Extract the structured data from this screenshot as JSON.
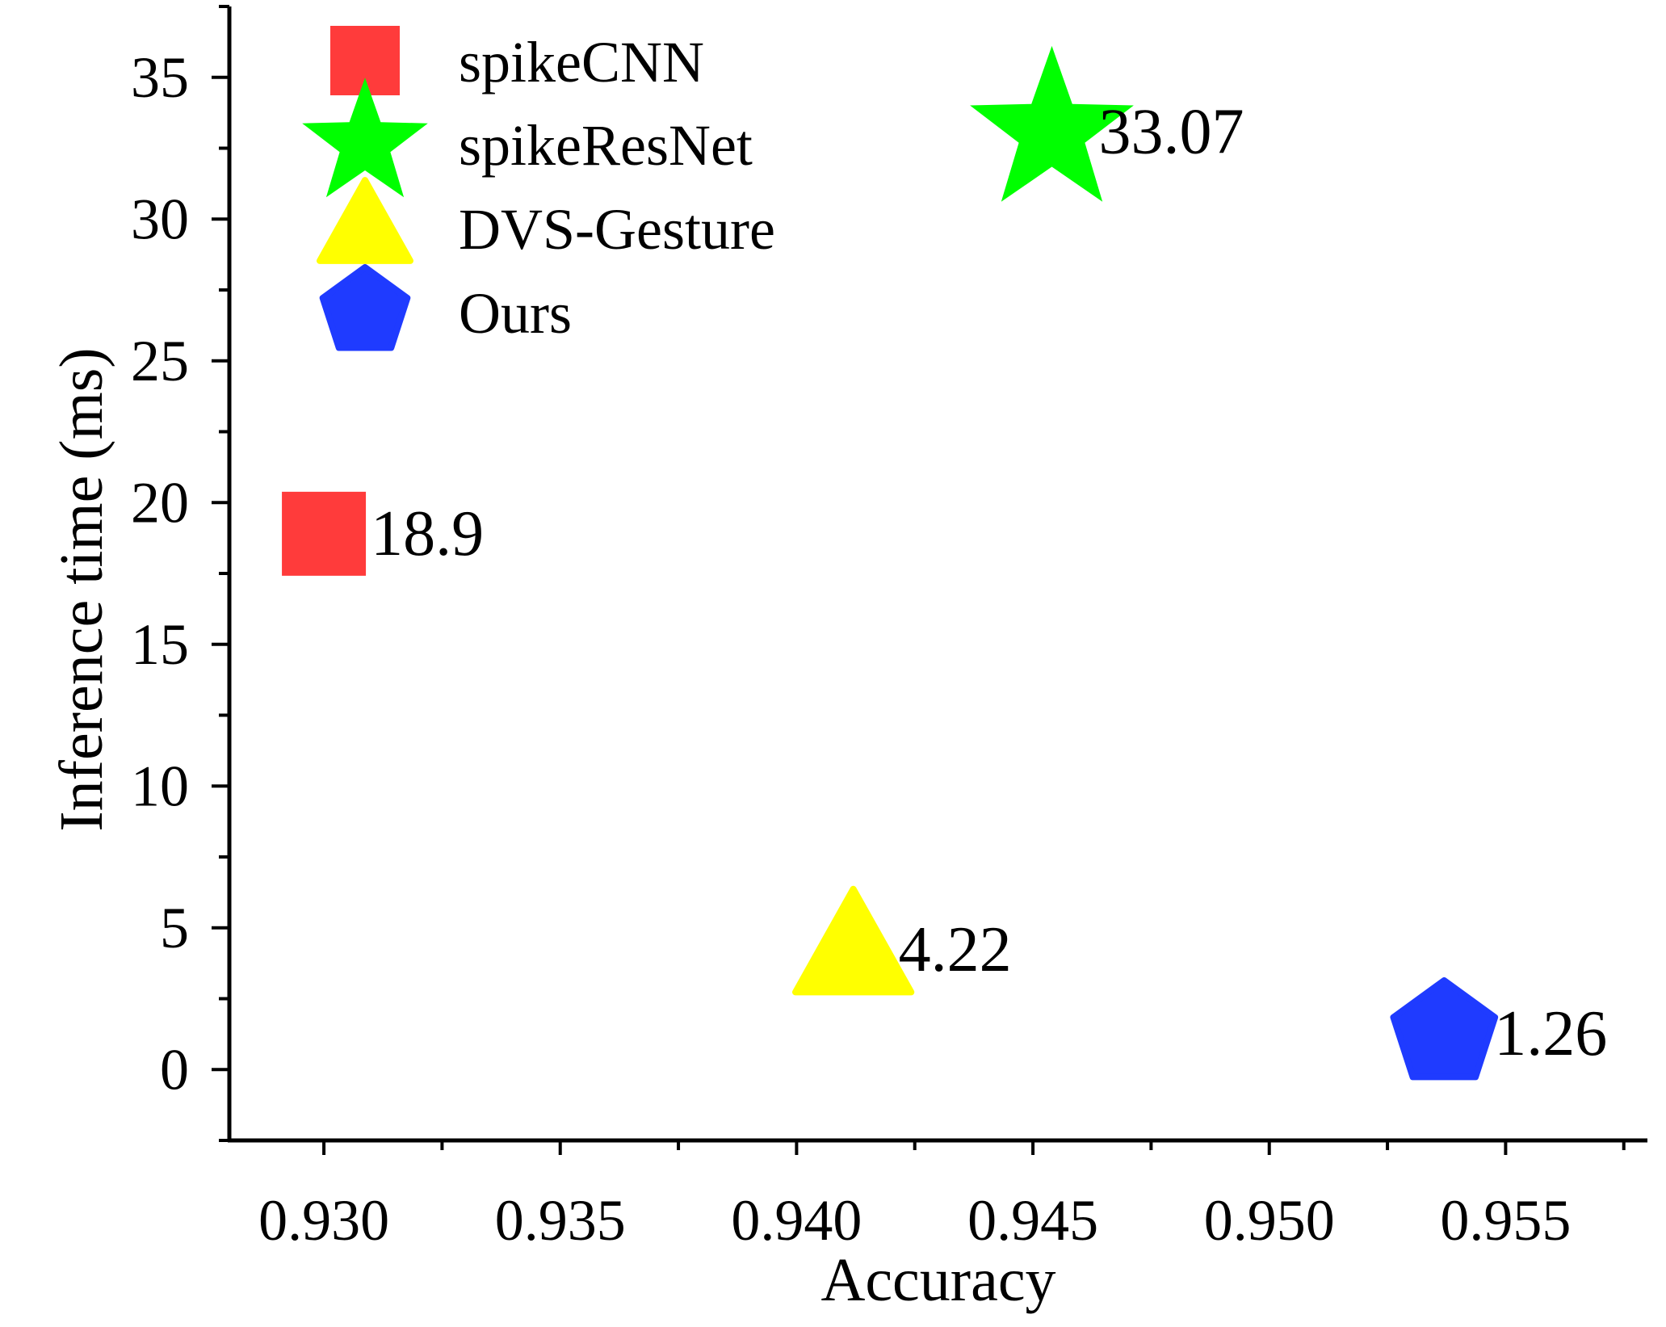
{
  "chart_data": {
    "type": "scatter",
    "xlabel": "Accuracy",
    "ylabel": "Inference time (ms)",
    "xlim": [
      0.928,
      0.958
    ],
    "ylim": [
      -2.5,
      37.5
    ],
    "x_ticks": [
      0.93,
      0.935,
      0.94,
      0.945,
      0.95,
      0.955
    ],
    "x_tick_labels": [
      "0.930",
      "0.935",
      "0.940",
      "0.945",
      "0.950",
      "0.955"
    ],
    "y_ticks": [
      0,
      5,
      10,
      15,
      20,
      25,
      30,
      35
    ],
    "y_tick_labels": [
      "0",
      "5",
      "10",
      "15",
      "20",
      "25",
      "30",
      "35"
    ],
    "grid": false,
    "legend_position": "top-left",
    "series": [
      {
        "name": "spikeCNN",
        "marker": "square",
        "color": "#ff3b3b",
        "x": 0.93,
        "y": 18.9,
        "label": "18.9"
      },
      {
        "name": "spikeResNet",
        "marker": "star",
        "color": "#00ff00",
        "x": 0.9454,
        "y": 33.07,
        "label": "33.07"
      },
      {
        "name": "DVS-Gesture",
        "marker": "triangle",
        "color": "#ffff00",
        "x": 0.9412,
        "y": 4.22,
        "label": "4.22"
      },
      {
        "name": "Ours",
        "marker": "pentagon",
        "color": "#1f3bff",
        "x": 0.9537,
        "y": 1.26,
        "label": "1.26"
      }
    ]
  }
}
